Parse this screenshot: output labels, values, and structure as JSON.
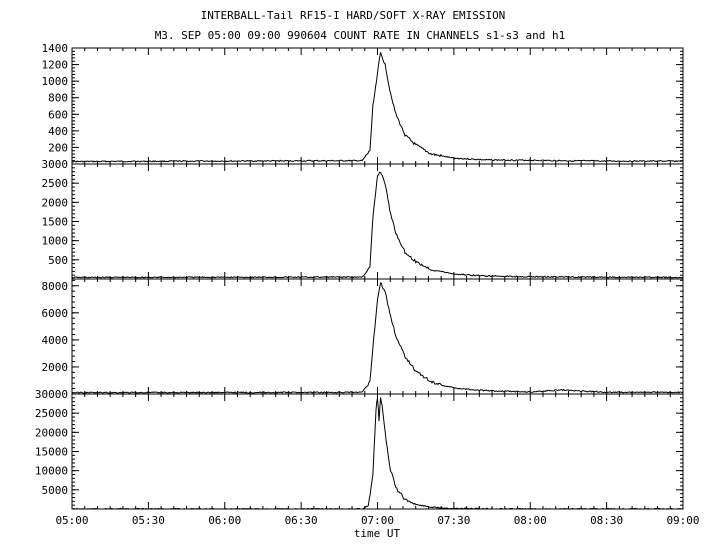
{
  "chart_data": {
    "type": "line",
    "title": "INTERBALL-Tail RF15-I HARD/SOFT X-RAY EMISSION",
    "subtitle": "M3. SEP 05:00 09:00 990604  COUNT RATE IN CHANNELS s1-s3 and h1",
    "xlabel": "time UT",
    "x_range_hours": [
      5.0,
      9.0
    ],
    "x_ticks": [
      "05:00",
      "05:30",
      "06:00",
      "06:30",
      "07:00",
      "07:30",
      "08:00",
      "08:30",
      "09:00"
    ],
    "grid": false,
    "legend": "none",
    "panels": [
      {
        "ylim": [
          0,
          1400
        ],
        "y_ticks": [
          200,
          400,
          600,
          800,
          1000,
          1200,
          1400
        ],
        "y_tick_labels": [
          "200",
          "400",
          "600",
          "800",
          "1000",
          "1200",
          "1400"
        ],
        "baseline": 30,
        "x_hours": [
          6.9,
          6.95,
          6.97,
          7.0,
          7.02,
          7.05,
          7.08,
          7.12,
          7.18,
          7.25,
          7.35,
          7.5,
          7.7,
          8.0,
          8.2,
          8.5,
          9.0
        ],
        "values": [
          40,
          160,
          700,
          1100,
          1340,
          1200,
          900,
          600,
          350,
          230,
          120,
          70,
          50,
          45,
          40,
          35,
          35
        ]
      },
      {
        "ylim": [
          0,
          3000
        ],
        "y_ticks": [
          500,
          1000,
          1500,
          2000,
          2500,
          3000
        ],
        "y_tick_labels": [
          "500",
          "1000",
          "1500",
          "2000",
          "2500",
          "3000"
        ],
        "baseline": 40,
        "x_hours": [
          6.9,
          6.95,
          6.97,
          7.0,
          7.02,
          7.05,
          7.08,
          7.12,
          7.18,
          7.25,
          7.35,
          7.5,
          7.7,
          8.0,
          8.2,
          8.5,
          9.0
        ],
        "values": [
          50,
          300,
          1600,
          2700,
          2800,
          2500,
          1800,
          1200,
          700,
          450,
          250,
          130,
          80,
          60,
          55,
          45,
          40
        ]
      },
      {
        "ylim": [
          0,
          8500
        ],
        "y_ticks": [
          2000,
          4000,
          6000,
          8000
        ],
        "y_tick_labels": [
          "2000",
          "4000",
          "6000",
          "8000"
        ],
        "baseline": 100,
        "x_hours": [
          6.9,
          6.95,
          6.97,
          7.0,
          7.02,
          7.05,
          7.08,
          7.12,
          7.18,
          7.25,
          7.35,
          7.5,
          7.7,
          8.0,
          8.2,
          8.5,
          9.0
        ],
        "values": [
          120,
          900,
          3500,
          7000,
          8200,
          7600,
          6000,
          4300,
          2800,
          1700,
          900,
          450,
          250,
          150,
          300,
          130,
          120
        ]
      },
      {
        "ylim": [
          0,
          30000
        ],
        "y_ticks": [
          5000,
          10000,
          15000,
          20000,
          25000,
          30000
        ],
        "y_tick_labels": [
          "5000",
          "10000",
          "15000",
          "20000",
          "25000",
          "30000"
        ],
        "baseline": 0,
        "x_hours": [
          6.9,
          6.94,
          6.97,
          6.99,
          7.0,
          7.01,
          7.02,
          7.03,
          7.05,
          7.08,
          7.12,
          7.18,
          7.25,
          7.35,
          7.5,
          7.7,
          8.0,
          9.0
        ],
        "values": [
          0,
          900,
          9000,
          26000,
          29000,
          23000,
          29000,
          27000,
          20000,
          11000,
          5500,
          2500,
          1200,
          500,
          150,
          50,
          0,
          0
        ]
      }
    ]
  }
}
